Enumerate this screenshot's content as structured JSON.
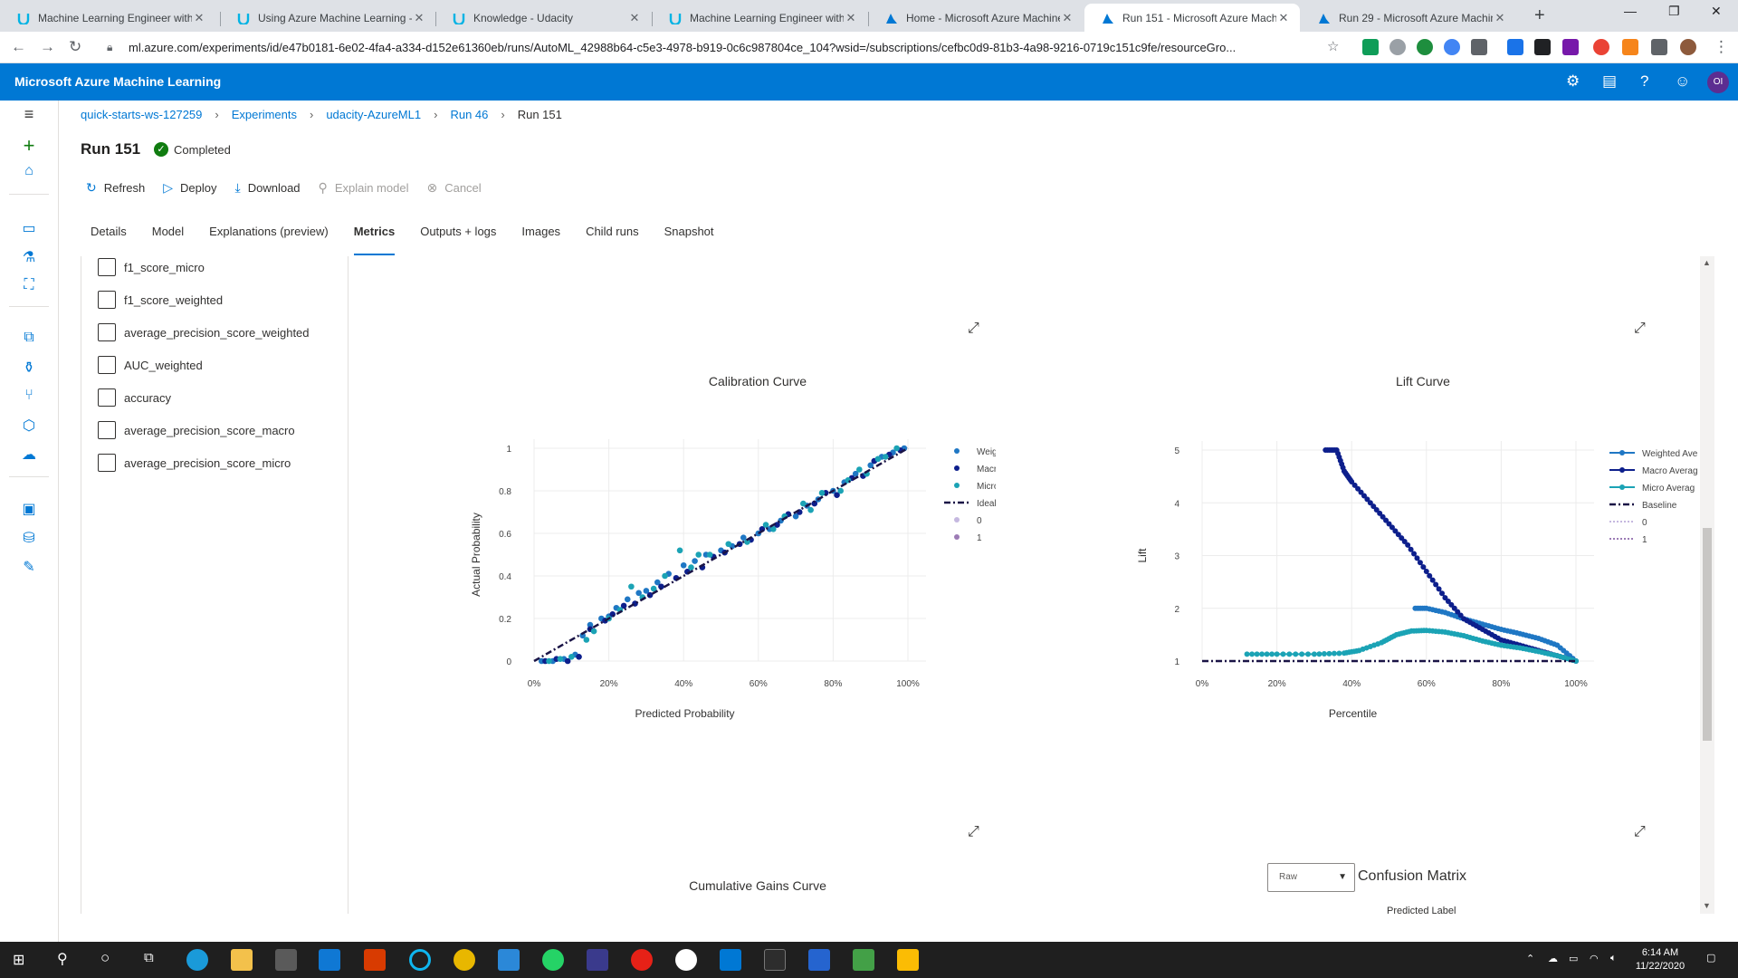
{
  "browser": {
    "tabs": [
      {
        "title": "Machine Learning Engineer with",
        "icon": "udacity-icon"
      },
      {
        "title": "Using Azure Machine Learning -",
        "icon": "udacity-icon"
      },
      {
        "title": "Knowledge - Udacity",
        "icon": "udacity-icon"
      },
      {
        "title": "Machine Learning Engineer with",
        "icon": "udacity-icon"
      },
      {
        "title": "Home - Microsoft Azure Machine",
        "icon": "azureml-icon"
      },
      {
        "title": "Run 151 - Microsoft Azure Mach",
        "icon": "azureml-icon",
        "active": true
      },
      {
        "title": "Run 29 - Microsoft Azure Machin",
        "icon": "azureml-icon"
      }
    ],
    "url": "ml.azure.com/experiments/id/e47b0181-6e02-4fa4-a334-d152e61360eb/runs/AutoML_42988b64-c5e3-4978-b919-0c6c987804ce_104?wsid=/subscriptions/cefbc0d9-81b3-4a98-9216-0719c151c9fe/resourceGro..."
  },
  "header": {
    "brand": "Microsoft Azure Machine Learning",
    "avatar_initials": "OI",
    "accent": "#0078d4"
  },
  "breadcrumb": {
    "items": [
      "quick-starts-ws-127259",
      "Experiments",
      "udacity-AzureML1",
      "Run 46"
    ],
    "current": "Run 151"
  },
  "run": {
    "title": "Run 151",
    "status": "Completed",
    "status_color": "#107c10"
  },
  "commands": {
    "refresh": "Refresh",
    "deploy": "Deploy",
    "download": "Download",
    "explain": "Explain model",
    "cancel": "Cancel"
  },
  "tabs": {
    "details": "Details",
    "model": "Model",
    "explanations": "Explanations (preview)",
    "metrics": "Metrics",
    "outputs": "Outputs + logs",
    "images": "Images",
    "child_runs": "Child runs",
    "snapshot": "Snapshot"
  },
  "metrics": {
    "items": [
      "f1_score_micro",
      "f1_score_weighted",
      "average_precision_score_weighted",
      "AUC_weighted",
      "accuracy",
      "average_precision_score_macro",
      "average_precision_score_micro"
    ]
  },
  "calibration": {
    "title": "Calibration Curve",
    "xlabel": "Predicted Probability",
    "ylabel": "Actual Probability",
    "xticks": [
      "0%",
      "20%",
      "40%",
      "60%",
      "80%",
      "100%"
    ],
    "yticks": [
      "0",
      "0.2",
      "0.4",
      "0.6",
      "0.8",
      "1"
    ],
    "legend": [
      "Weighted Average",
      "Macro Average",
      "Micro Average",
      "Ideal",
      "0",
      "1"
    ]
  },
  "lift": {
    "title": "Lift Curve",
    "xlabel": "Percentile",
    "ylabel": "Lift",
    "xticks": [
      "0%",
      "20%",
      "40%",
      "60%",
      "80%",
      "100%"
    ],
    "yticks": [
      "1",
      "2",
      "3",
      "4",
      "5"
    ],
    "legend": [
      "Weighted Ave",
      "Macro Averag",
      "Micro Averag",
      "Baseline",
      "0",
      "1"
    ]
  },
  "cumulative": {
    "title": "Cumulative Gains Curve"
  },
  "confusion": {
    "title": "Confusion Matrix",
    "dropdown_value": "Raw",
    "predicted_label": "Predicted Label"
  },
  "chart_data": [
    {
      "type": "scatter",
      "title": "Calibration Curve",
      "xlabel": "Predicted Probability",
      "ylabel": "Actual Probability",
      "xlim": [
        0,
        1
      ],
      "ylim": [
        0,
        1
      ],
      "x_tick_labels": [
        "0%",
        "20%",
        "40%",
        "60%",
        "80%",
        "100%"
      ],
      "y_tick_labels": [
        "0",
        "0.2",
        "0.4",
        "0.6",
        "0.8",
        "1"
      ],
      "legend_position": "right",
      "grid": true,
      "colors": {
        "Weighted Average": "#1f77c4",
        "Macro Average": "#0d1f8c",
        "Micro Average": "#1ba3b5",
        "Ideal": "#1a1446"
      },
      "series": [
        {
          "name": "Weighted Average",
          "x": [
            0.02,
            0.05,
            0.08,
            0.11,
            0.13,
            0.15,
            0.18,
            0.2,
            0.22,
            0.25,
            0.28,
            0.3,
            0.33,
            0.36,
            0.4,
            0.43,
            0.46,
            0.5,
            0.53,
            0.56,
            0.6,
            0.63,
            0.66,
            0.7,
            0.73,
            0.76,
            0.8,
            0.83,
            0.86,
            0.9,
            0.93,
            0.96,
            0.99
          ],
          "y": [
            0.0,
            0.0,
            0.01,
            0.03,
            0.12,
            0.17,
            0.2,
            0.21,
            0.25,
            0.29,
            0.32,
            0.33,
            0.37,
            0.41,
            0.45,
            0.47,
            0.5,
            0.52,
            0.54,
            0.58,
            0.6,
            0.62,
            0.66,
            0.68,
            0.73,
            0.76,
            0.8,
            0.84,
            0.88,
            0.92,
            0.96,
            0.98,
            1.0
          ]
        },
        {
          "name": "Macro Average",
          "x": [
            0.03,
            0.06,
            0.09,
            0.12,
            0.15,
            0.19,
            0.21,
            0.24,
            0.27,
            0.31,
            0.34,
            0.38,
            0.41,
            0.45,
            0.48,
            0.51,
            0.55,
            0.58,
            0.61,
            0.65,
            0.68,
            0.71,
            0.75,
            0.78,
            0.81,
            0.85,
            0.88,
            0.91,
            0.95,
            0.98
          ],
          "y": [
            0.0,
            0.01,
            0.0,
            0.02,
            0.15,
            0.19,
            0.22,
            0.26,
            0.27,
            0.31,
            0.35,
            0.39,
            0.42,
            0.44,
            0.49,
            0.51,
            0.55,
            0.57,
            0.62,
            0.64,
            0.69,
            0.7,
            0.74,
            0.79,
            0.78,
            0.86,
            0.87,
            0.94,
            0.97,
            0.99
          ]
        },
        {
          "name": "Micro Average",
          "x": [
            0.04,
            0.07,
            0.1,
            0.14,
            0.16,
            0.2,
            0.23,
            0.26,
            0.29,
            0.32,
            0.35,
            0.39,
            0.42,
            0.44,
            0.47,
            0.52,
            0.57,
            0.62,
            0.64,
            0.67,
            0.72,
            0.74,
            0.77,
            0.82,
            0.84,
            0.87,
            0.89,
            0.92,
            0.94,
            0.97
          ],
          "y": [
            0.0,
            0.01,
            0.02,
            0.1,
            0.14,
            0.2,
            0.24,
            0.35,
            0.3,
            0.34,
            0.4,
            0.52,
            0.44,
            0.5,
            0.5,
            0.55,
            0.56,
            0.64,
            0.62,
            0.68,
            0.74,
            0.71,
            0.79,
            0.8,
            0.85,
            0.9,
            0.88,
            0.95,
            0.96,
            1.0
          ]
        },
        {
          "name": "Ideal",
          "x": [
            0,
            1
          ],
          "y": [
            0,
            1
          ]
        }
      ]
    },
    {
      "type": "line",
      "title": "Lift Curve",
      "xlabel": "Percentile",
      "ylabel": "Lift",
      "xlim": [
        0,
        1
      ],
      "ylim": [
        1,
        5
      ],
      "x_tick_labels": [
        "0%",
        "20%",
        "40%",
        "60%",
        "80%",
        "100%"
      ],
      "y_tick_labels": [
        "1",
        "2",
        "3",
        "4",
        "5"
      ],
      "legend_position": "right",
      "grid": true,
      "colors": {
        "Weighted Average": "#1f77c4",
        "Macro Average": "#0d1f8c",
        "Micro Average": "#1ba3b5",
        "Baseline": "#1a1446"
      },
      "series": [
        {
          "name": "Weighted Average",
          "x": [
            0.57,
            0.6,
            0.65,
            0.7,
            0.75,
            0.8,
            0.85,
            0.9,
            0.95,
            1.0
          ],
          "y": [
            2.0,
            2.0,
            1.92,
            1.8,
            1.7,
            1.6,
            1.52,
            1.43,
            1.3,
            1.0
          ]
        },
        {
          "name": "Macro Average",
          "x": [
            0.33,
            0.36,
            0.38,
            0.4,
            0.45,
            0.5,
            0.55,
            0.6,
            0.65,
            0.7,
            0.75,
            0.8,
            0.85,
            0.9,
            0.95,
            1.0
          ],
          "y": [
            5.0,
            5.0,
            4.6,
            4.4,
            4.0,
            3.6,
            3.2,
            2.7,
            2.2,
            1.8,
            1.6,
            1.4,
            1.3,
            1.2,
            1.1,
            1.0
          ]
        },
        {
          "name": "Micro Average",
          "x": [
            0.12,
            0.2,
            0.3,
            0.38,
            0.42,
            0.48,
            0.52,
            0.56,
            0.6,
            0.65,
            0.7,
            0.75,
            0.8,
            0.85,
            0.9,
            0.95,
            1.0
          ],
          "y": [
            1.13,
            1.13,
            1.13,
            1.15,
            1.2,
            1.35,
            1.5,
            1.57,
            1.58,
            1.55,
            1.48,
            1.38,
            1.3,
            1.25,
            1.18,
            1.1,
            1.0
          ]
        },
        {
          "name": "Baseline",
          "x": [
            0,
            1
          ],
          "y": [
            1,
            1
          ]
        }
      ]
    }
  ]
}
